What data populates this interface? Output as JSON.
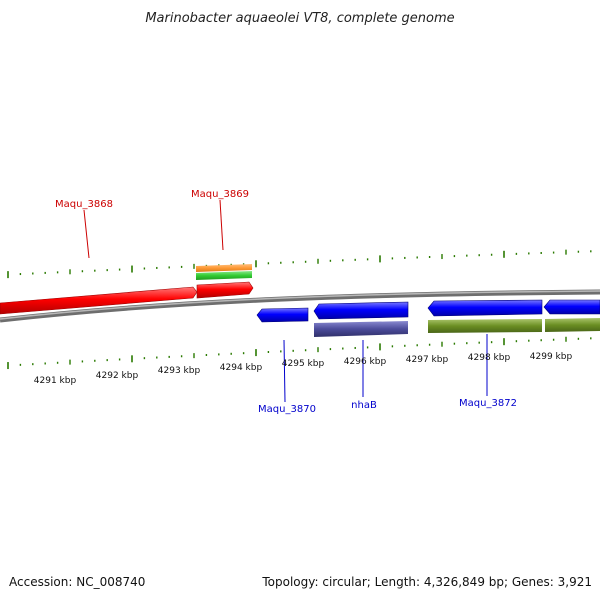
{
  "title": "Marinobacter aquaeolei VT8, complete genome",
  "footer": {
    "accession": "Accession: NC_008740",
    "info": "Topology: circular; Length: 4,326,849 bp; Genes: 3,921"
  },
  "kbp_labels": [
    "4291 kbp",
    "4292 kbp",
    "4293 kbp",
    "4294 kbp",
    "4295 kbp",
    "4296 kbp",
    "4297 kbp",
    "4298 kbp",
    "4299 kbp"
  ],
  "gene_labels": {
    "maqu_3868": "Maqu_3868",
    "maqu_3869": "Maqu_3869",
    "maqu_3870": "Maqu_3870",
    "nhab": "nhaB",
    "maqu_3872": "Maqu_3872"
  },
  "colors": {
    "forward_gene": "#ff0000",
    "reverse_gene": "#0000ff",
    "label_forward": "#cc0000",
    "label_reverse": "#0000cc",
    "tick": "#2a7a00",
    "backbone": "#8c8c8c",
    "cds_orange": "#ff9933",
    "cds_green": "#33cc33",
    "cds_olive": "#6b8e23",
    "cds_purple": "#4b4b9a"
  }
}
